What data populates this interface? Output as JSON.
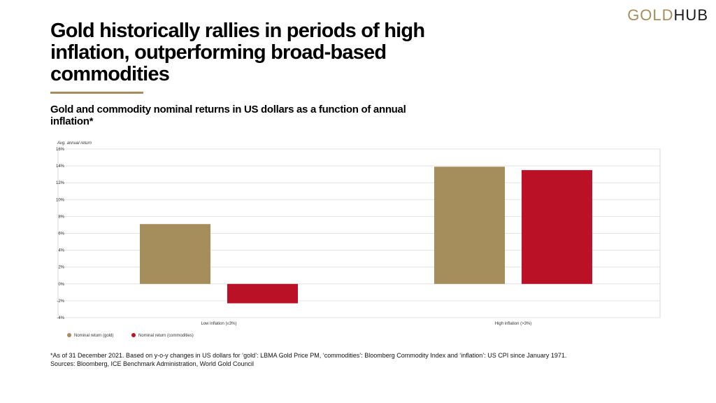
{
  "logo": {
    "part1": "GOLD",
    "part2": "HUB"
  },
  "header": {
    "title": "Gold historically rallies in periods of high inflation, outperforming broad-based commodities",
    "subtitle": "Gold and commodity nominal returns in US dollars as a function of annual inflation*"
  },
  "colors": {
    "gold": "#a58e5c",
    "commodities": "#bb1127",
    "accent": "#a58e5c"
  },
  "chart_data": {
    "type": "bar",
    "ylabel": "Avg. annual return",
    "xlabel": "",
    "categories": [
      "Low inflation (≤3%)",
      "High inflation (>3%)"
    ],
    "series": [
      {
        "name": "Nominal return (gold)",
        "values": [
          7.1,
          13.9
        ],
        "color": "#a58e5c"
      },
      {
        "name": "Nominal return (commodities)",
        "values": [
          -2.3,
          13.5
        ],
        "color": "#bb1127"
      }
    ],
    "ylim": [
      -4,
      16
    ],
    "yticks": [
      "-4%",
      "-2%",
      "0%",
      "2%",
      "4%",
      "6%",
      "8%",
      "10%",
      "12%",
      "14%",
      "16%"
    ],
    "grid": true,
    "legend": "bottom-left"
  },
  "footnote": {
    "line1": "*As of 31 December 2021. Based on y-o-y changes in US dollars for ‘gold’: LBMA Gold Price PM, ‘commodities’: Bloomberg Commodity Index and ‘inflation’: US CPI since January 1971.",
    "line2": "Sources: Bloomberg, ICE Benchmark Administration, World Gold Council"
  }
}
